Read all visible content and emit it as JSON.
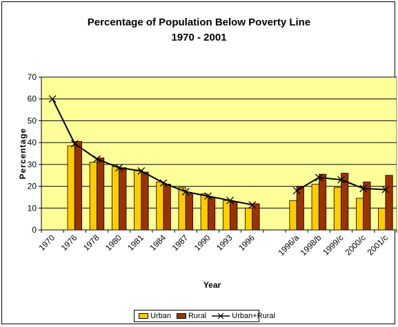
{
  "chart_data": {
    "type": "bar",
    "title": "Percentage of Population Below Poverty Line",
    "subtitle": "1970 - 2001",
    "xlabel": "Year",
    "ylabel": "Percentage",
    "ylim": [
      0,
      70
    ],
    "yticks": [
      "0",
      "10",
      "20",
      "30",
      "40",
      "50",
      "60",
      "70"
    ],
    "grid": true,
    "legend_position": "bottom",
    "categories": [
      "1970",
      "1976",
      "1978",
      "1980",
      "1981",
      "1984",
      "1987",
      "1990",
      "1993",
      "1996",
      "",
      "1996/a",
      "1998/b",
      "1999/c",
      "2000/c",
      "2001/c"
    ],
    "series": [
      {
        "name": "Urban",
        "kind": "bar",
        "color": "#FFCC00",
        "values": [
          null,
          38.5,
          31,
          29,
          27.5,
          22,
          19.5,
          16.5,
          13.5,
          10,
          null,
          13.5,
          21,
          19.5,
          14.5,
          10
        ]
      },
      {
        "name": "Rural",
        "kind": "bar",
        "color": "#993300",
        "values": [
          null,
          40.5,
          33,
          28.5,
          26.5,
          21,
          16.5,
          15,
          13,
          12,
          null,
          20,
          25.5,
          26,
          22,
          25
        ]
      },
      {
        "name": "Urban+Rural",
        "kind": "line",
        "color": "#000000",
        "values": [
          60,
          39.5,
          32.5,
          28.5,
          27,
          21.5,
          17.5,
          15.5,
          13.5,
          11.5,
          null,
          18,
          24,
          23,
          19,
          18.5
        ]
      }
    ],
    "colors": {
      "plot_bg": "#FFFF99",
      "urban": "#FFCC00",
      "rural": "#993300",
      "line": "#000000"
    }
  }
}
